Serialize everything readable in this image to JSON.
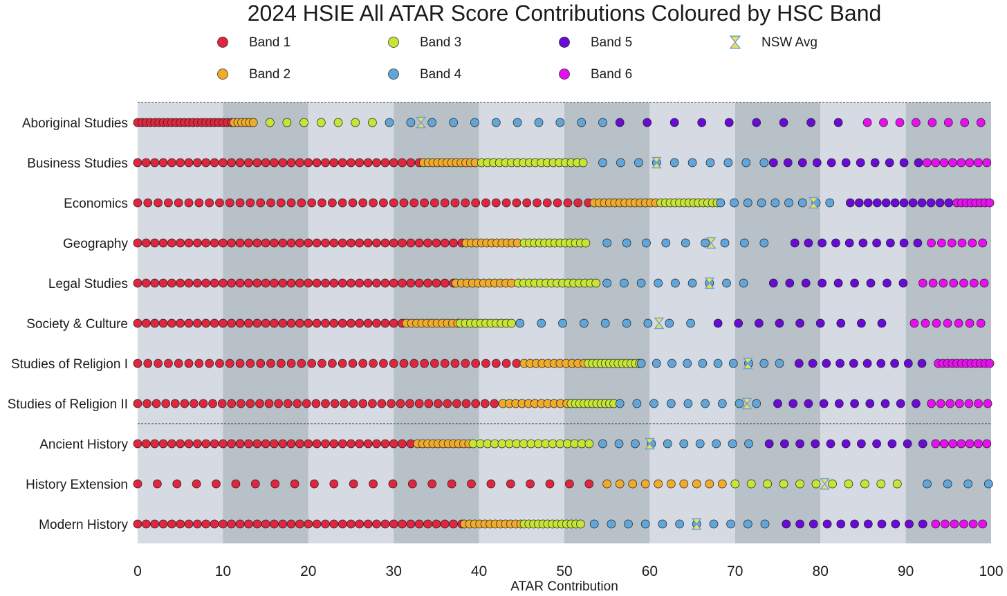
{
  "chart_data": {
    "type": "scatter",
    "title": "2024 HSIE All ATAR Score Contributions Coloured by HSC Band",
    "xlabel": "ATAR Contribution",
    "xlim": [
      0,
      100
    ],
    "xticks": [
      0,
      10,
      20,
      30,
      40,
      50,
      60,
      70,
      80,
      90,
      100
    ],
    "legend_position": "top",
    "colors": {
      "band1": "#e0253e",
      "band2": "#f0ab2b",
      "band3": "#c6e534",
      "band4": "#62a5d8",
      "band5": "#6a0ad6",
      "band6": "#e70ff0",
      "avg": "#f3e24d",
      "avg_accent": "#6a9fd4",
      "band_shade_light": "#d6dae3",
      "band_shade_dark": "#b8c1c8"
    },
    "legend": [
      {
        "key": "band1",
        "label": "Band 1",
        "marker": "circle"
      },
      {
        "key": "band3",
        "label": "Band 3",
        "marker": "circle"
      },
      {
        "key": "band5",
        "label": "Band 5",
        "marker": "circle"
      },
      {
        "key": "avg",
        "label": "NSW Avg",
        "marker": "hourglass"
      },
      {
        "key": "band2",
        "label": "Band 2",
        "marker": "circle"
      },
      {
        "key": "band4",
        "label": "Band 4",
        "marker": "circle"
      },
      {
        "key": "band6",
        "label": "Band 6",
        "marker": "circle"
      }
    ],
    "series": [
      {
        "name": "Aboriginal Studies",
        "nsw_avg": 33.2,
        "bands": [
          {
            "band": 1,
            "from": 0,
            "to": 11.0,
            "step": 0.5
          },
          {
            "band": 2,
            "from": 11.3,
            "to": 13.8,
            "step": 0.45
          },
          {
            "band": 3,
            "from": 15.5,
            "to": 27.5,
            "step": 2.0
          },
          {
            "band": 4,
            "from": 29.5,
            "to": 55.5,
            "step": 2.5
          },
          {
            "band": 5,
            "from": 56.5,
            "to": 82.5,
            "step": 3.2
          },
          {
            "band": 6,
            "from": 85.5,
            "to": 99.6,
            "step": 1.9
          }
        ]
      },
      {
        "name": "Business Studies",
        "nsw_avg": 60.8,
        "bands": [
          {
            "band": 1,
            "from": 0,
            "to": 33.0,
            "step": 1.0
          },
          {
            "band": 2,
            "from": 33.5,
            "to": 40.0,
            "step": 0.55
          },
          {
            "band": 3,
            "from": 40.3,
            "to": 52.5,
            "step": 0.7
          },
          {
            "band": 4,
            "from": 54.5,
            "to": 73.5,
            "step": 2.1
          },
          {
            "band": 5,
            "from": 74.5,
            "to": 91.5,
            "step": 1.7
          },
          {
            "band": 6,
            "from": 92.5,
            "to": 100,
            "step": 1.0
          }
        ]
      },
      {
        "name": "Economics",
        "nsw_avg": 79.2,
        "bands": [
          {
            "band": 1,
            "from": 0,
            "to": 53.0,
            "step": 1.2
          },
          {
            "band": 2,
            "from": 53.5,
            "to": 61.0,
            "step": 0.6
          },
          {
            "band": 3,
            "from": 61.3,
            "to": 68.0,
            "step": 0.55
          },
          {
            "band": 4,
            "from": 68.3,
            "to": 82.5,
            "step": 1.6
          },
          {
            "band": 5,
            "from": 83.5,
            "to": 95.5,
            "step": 1.05
          },
          {
            "band": 6,
            "from": 96.0,
            "to": 100,
            "step": 0.55
          }
        ]
      },
      {
        "name": "Geography",
        "nsw_avg": 67.2,
        "bands": [
          {
            "band": 1,
            "from": 0,
            "to": 38.2,
            "step": 1.0
          },
          {
            "band": 2,
            "from": 38.5,
            "to": 45.0,
            "step": 0.6
          },
          {
            "band": 3,
            "from": 45.3,
            "to": 52.5,
            "step": 0.6
          },
          {
            "band": 4,
            "from": 55.0,
            "to": 75.5,
            "step": 2.3
          },
          {
            "band": 5,
            "from": 77.0,
            "to": 91.5,
            "step": 1.6
          },
          {
            "band": 6,
            "from": 93.0,
            "to": 100,
            "step": 1.2
          }
        ]
      },
      {
        "name": "Legal Studies",
        "nsw_avg": 67.0,
        "bands": [
          {
            "band": 1,
            "from": 0,
            "to": 37.0,
            "step": 1.0
          },
          {
            "band": 2,
            "from": 37.3,
            "to": 44.3,
            "step": 0.65
          },
          {
            "band": 3,
            "from": 44.6,
            "to": 54.0,
            "step": 0.65
          },
          {
            "band": 4,
            "from": 55.0,
            "to": 72.5,
            "step": 2.0
          },
          {
            "band": 5,
            "from": 74.5,
            "to": 91.5,
            "step": 1.9
          },
          {
            "band": 6,
            "from": 92.0,
            "to": 100,
            "step": 1.2
          }
        ]
      },
      {
        "name": "Society & Culture",
        "nsw_avg": 61.1,
        "bands": [
          {
            "band": 1,
            "from": 0,
            "to": 31.2,
            "step": 1.0
          },
          {
            "band": 2,
            "from": 31.5,
            "to": 37.5,
            "step": 0.6
          },
          {
            "band": 3,
            "from": 37.8,
            "to": 44.3,
            "step": 0.6
          },
          {
            "band": 4,
            "from": 44.8,
            "to": 66.0,
            "step": 2.5
          },
          {
            "band": 5,
            "from": 68.0,
            "to": 89.5,
            "step": 2.4
          },
          {
            "band": 6,
            "from": 91.0,
            "to": 100,
            "step": 1.3
          }
        ]
      },
      {
        "name": "Studies of Religion I",
        "nsw_avg": 71.5,
        "bands": [
          {
            "band": 1,
            "from": 0,
            "to": 45.0,
            "step": 1.2
          },
          {
            "band": 2,
            "from": 45.3,
            "to": 52.5,
            "step": 0.7
          },
          {
            "band": 3,
            "from": 52.8,
            "to": 58.8,
            "step": 0.5
          },
          {
            "band": 4,
            "from": 59.0,
            "to": 76.5,
            "step": 1.8
          },
          {
            "band": 5,
            "from": 77.5,
            "to": 93.2,
            "step": 1.6
          },
          {
            "band": 6,
            "from": 93.8,
            "to": 100,
            "step": 0.55
          }
        ]
      },
      {
        "name": "Studies of Religion II",
        "nsw_avg": 71.4,
        "bands": [
          {
            "band": 1,
            "from": 0,
            "to": 42.5,
            "step": 1.1
          },
          {
            "band": 2,
            "from": 42.8,
            "to": 50.5,
            "step": 0.75
          },
          {
            "band": 3,
            "from": 50.8,
            "to": 56.2,
            "step": 0.5
          },
          {
            "band": 4,
            "from": 56.5,
            "to": 74.0,
            "step": 2.0
          },
          {
            "band": 5,
            "from": 75.0,
            "to": 91.5,
            "step": 1.8
          },
          {
            "band": 6,
            "from": 93.0,
            "to": 100,
            "step": 1.1
          }
        ]
      },
      {
        "name": "Ancient History",
        "nsw_avg": 60.0,
        "bands": [
          {
            "band": 1,
            "from": 0,
            "to": 32.5,
            "step": 1.0
          },
          {
            "band": 2,
            "from": 32.8,
            "to": 39.0,
            "step": 0.6
          },
          {
            "band": 3,
            "from": 39.3,
            "to": 53.0,
            "step": 0.85
          },
          {
            "band": 4,
            "from": 54.5,
            "to": 72.0,
            "step": 1.9
          },
          {
            "band": 5,
            "from": 74.0,
            "to": 92.0,
            "step": 1.8
          },
          {
            "band": 6,
            "from": 93.5,
            "to": 100,
            "step": 1.0
          }
        ]
      },
      {
        "name": "History Extension",
        "nsw_avg": 80.5,
        "bands": [
          {
            "band": 1,
            "from": 0,
            "to": 53.5,
            "step": 2.3
          },
          {
            "band": 2,
            "from": 55.0,
            "to": 68.5,
            "step": 1.5
          },
          {
            "band": 3,
            "from": 70.0,
            "to": 90.0,
            "step": 1.9
          },
          {
            "band": 4,
            "from": 92.5,
            "to": 100,
            "step": 2.4
          }
        ]
      },
      {
        "name": "Modern History",
        "nsw_avg": 65.5,
        "bands": [
          {
            "band": 1,
            "from": 0,
            "to": 38.0,
            "step": 1.0
          },
          {
            "band": 2,
            "from": 38.3,
            "to": 45.0,
            "step": 0.6
          },
          {
            "band": 3,
            "from": 45.3,
            "to": 52.0,
            "step": 0.55
          },
          {
            "band": 4,
            "from": 53.5,
            "to": 74.0,
            "step": 2.0
          },
          {
            "band": 5,
            "from": 76.0,
            "to": 92.5,
            "step": 1.6
          },
          {
            "band": 6,
            "from": 93.5,
            "to": 100,
            "step": 1.1
          }
        ]
      }
    ],
    "group_separators_after": [
      7
    ]
  }
}
